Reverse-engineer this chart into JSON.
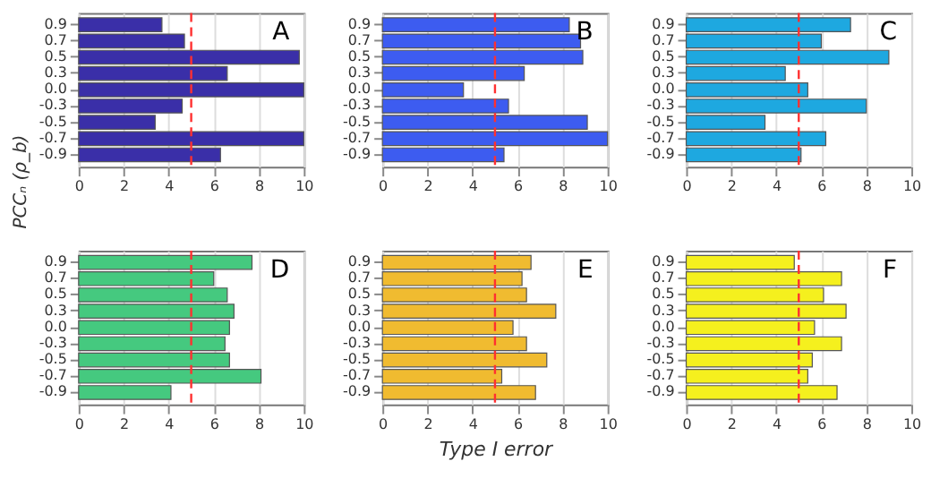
{
  "chart_data": [
    {
      "type": "bar",
      "orientation": "horizontal",
      "ylabel": "PCCₙ (ρ_b)",
      "annotations": [
        "A"
      ],
      "categories": [
        "0.9",
        "0.7",
        "0.5",
        "0.3",
        "0.0",
        "-0.3",
        "-0.5",
        "-0.7",
        "-0.9"
      ],
      "values": [
        3.7,
        4.7,
        9.8,
        6.6,
        10,
        4.6,
        3.4,
        10,
        6.3
      ],
      "color": "#3a2fa8",
      "xlim": [
        0,
        10
      ],
      "xticks": [
        0,
        2,
        4,
        6,
        8,
        10
      ],
      "grid": "x",
      "ref_lines": [
        {
          "axis": "x",
          "value": 5,
          "color": "#ff3030",
          "line_style": "dashed"
        }
      ]
    },
    {
      "type": "bar",
      "orientation": "horizontal",
      "annotations": [
        "B"
      ],
      "categories": [
        "0.9",
        "0.7",
        "0.5",
        "0.3",
        "0.0",
        "-0.3",
        "-0.5",
        "-0.7",
        "-0.9"
      ],
      "values": [
        8.3,
        8.8,
        8.9,
        6.3,
        3.6,
        5.6,
        9.1,
        10,
        5.4
      ],
      "color": "#3d5cf0",
      "xlim": [
        0,
        10
      ],
      "xticks": [
        0,
        2,
        4,
        6,
        8,
        10
      ],
      "grid": "x",
      "ref_lines": [
        {
          "axis": "x",
          "value": 5,
          "color": "#ff3030",
          "line_style": "dashed"
        }
      ]
    },
    {
      "type": "bar",
      "orientation": "horizontal",
      "annotations": [
        "C"
      ],
      "categories": [
        "0.9",
        "0.7",
        "0.5",
        "0.3",
        "0.0",
        "-0.3",
        "-0.5",
        "-0.7",
        "-0.9"
      ],
      "values": [
        7.3,
        6.0,
        9.0,
        4.4,
        5.4,
        8.0,
        3.5,
        6.2,
        5.1
      ],
      "color": "#1ea8e0",
      "xlim": [
        0,
        10
      ],
      "xticks": [
        0,
        2,
        4,
        6,
        8,
        10
      ],
      "grid": "x",
      "ref_lines": [
        {
          "axis": "x",
          "value": 5,
          "color": "#ff3030",
          "line_style": "dashed"
        }
      ]
    },
    {
      "type": "bar",
      "orientation": "horizontal",
      "annotations": [
        "D"
      ],
      "categories": [
        "0.9",
        "0.7",
        "0.5",
        "0.3",
        "0.0",
        "-0.3",
        "-0.5",
        "-0.7",
        "-0.9"
      ],
      "values": [
        7.7,
        6.0,
        6.6,
        6.9,
        6.7,
        6.5,
        6.7,
        8.1,
        4.1
      ],
      "color": "#45c97f",
      "xlim": [
        0,
        10
      ],
      "xticks": [
        0,
        2,
        4,
        6,
        8,
        10
      ],
      "grid": "x",
      "ref_lines": [
        {
          "axis": "x",
          "value": 5,
          "color": "#ff3030",
          "line_style": "dashed"
        }
      ]
    },
    {
      "type": "bar",
      "orientation": "horizontal",
      "xlabel": "Type I error",
      "annotations": [
        "E"
      ],
      "categories": [
        "0.9",
        "0.7",
        "0.5",
        "0.3",
        "0.0",
        "-0.3",
        "-0.5",
        "-0.7",
        "-0.9"
      ],
      "values": [
        6.6,
        6.2,
        6.4,
        7.7,
        5.8,
        6.4,
        7.3,
        5.3,
        6.8
      ],
      "color": "#f0bb30",
      "xlim": [
        0,
        10
      ],
      "xticks": [
        0,
        2,
        4,
        6,
        8,
        10
      ],
      "grid": "x",
      "ref_lines": [
        {
          "axis": "x",
          "value": 5,
          "color": "#ff3030",
          "line_style": "dashed"
        }
      ]
    },
    {
      "type": "bar",
      "orientation": "horizontal",
      "annotations": [
        "F"
      ],
      "categories": [
        "0.9",
        "0.7",
        "0.5",
        "0.3",
        "0.0",
        "-0.3",
        "-0.5",
        "-0.7",
        "-0.9"
      ],
      "values": [
        4.8,
        6.9,
        6.1,
        7.1,
        5.7,
        6.9,
        5.6,
        5.4,
        6.7
      ],
      "color": "#f5f01e",
      "xlim": [
        0,
        10
      ],
      "xticks": [
        0,
        2,
        4,
        6,
        8,
        10
      ],
      "grid": "x",
      "ref_lines": [
        {
          "axis": "x",
          "value": 5,
          "color": "#ff3030",
          "line_style": "dashed"
        }
      ]
    }
  ]
}
